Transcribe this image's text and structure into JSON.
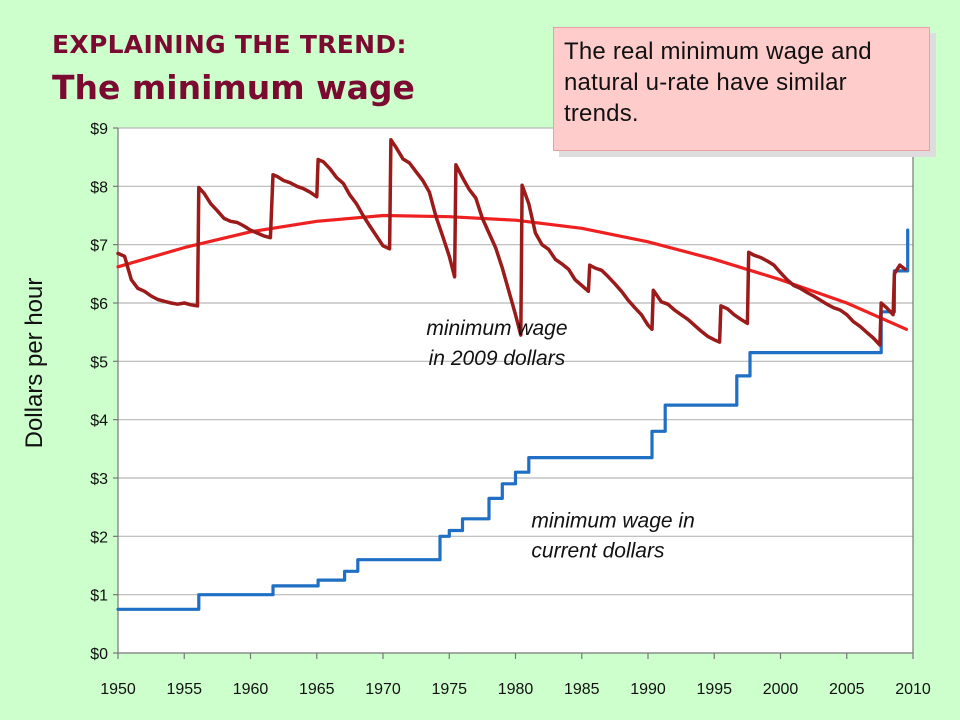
{
  "slide": {
    "title_line1": "EXPLAINING THE TREND:",
    "title_line2": "The minimum wage",
    "callout": "The real minimum wage and natural u-rate have similar trends."
  },
  "chart_data": {
    "type": "line",
    "ylabel": "Dollars per hour",
    "xlim": [
      1950,
      2010
    ],
    "ylim": [
      0,
      9
    ],
    "x_ticks": [
      1950,
      1955,
      1960,
      1965,
      1970,
      1975,
      1980,
      1985,
      1990,
      1995,
      2000,
      2005,
      2010
    ],
    "y_ticks": [
      {
        "value": 0,
        "label": "$0"
      },
      {
        "value": 1,
        "label": "$1"
      },
      {
        "value": 2,
        "label": "$2"
      },
      {
        "value": 3,
        "label": "$3"
      },
      {
        "value": 4,
        "label": "$4"
      },
      {
        "value": 5,
        "label": "$5"
      },
      {
        "value": 6,
        "label": "$6"
      },
      {
        "value": 7,
        "label": "$7"
      },
      {
        "value": 8,
        "label": "$8"
      },
      {
        "value": 9,
        "label": "$9"
      }
    ],
    "grid": "horizontal",
    "annotations": [
      {
        "lines": [
          "minimum wage",
          "in 2009 dollars"
        ],
        "x": 1978.6,
        "y": 5.45,
        "anchor": "middle"
      },
      {
        "lines": [
          "minimum wage in",
          "current dollars"
        ],
        "x": 1981.2,
        "y": 2.15,
        "anchor": "start"
      }
    ],
    "series": [
      {
        "key": "nominal",
        "color": "#1f6fc4",
        "step": true,
        "points": [
          [
            1950,
            0.75
          ],
          [
            1956.1,
            1.0
          ],
          [
            1961.7,
            1.15
          ],
          [
            1965.1,
            1.25
          ],
          [
            1967.1,
            1.4
          ],
          [
            1968.1,
            1.6
          ],
          [
            1974.3,
            2.0
          ],
          [
            1975.0,
            2.1
          ],
          [
            1976.0,
            2.3
          ],
          [
            1978.0,
            2.65
          ],
          [
            1979.0,
            2.9
          ],
          [
            1980.0,
            3.1
          ],
          [
            1981.0,
            3.35
          ],
          [
            1990.3,
            3.8
          ],
          [
            1991.3,
            4.25
          ],
          [
            1996.7,
            4.75
          ],
          [
            1997.7,
            5.15
          ],
          [
            2007.6,
            5.85
          ],
          [
            2008.6,
            6.55
          ],
          [
            2009.6,
            7.25
          ]
        ]
      },
      {
        "key": "real",
        "color": "#9b1b1b",
        "step": false,
        "points": [
          [
            1950.0,
            6.85
          ],
          [
            1950.5,
            6.8
          ],
          [
            1951.0,
            6.4
          ],
          [
            1951.5,
            6.25
          ],
          [
            1952.0,
            6.2
          ],
          [
            1952.5,
            6.12
          ],
          [
            1953.0,
            6.06
          ],
          [
            1953.5,
            6.03
          ],
          [
            1954.0,
            6.0
          ],
          [
            1954.5,
            5.98
          ],
          [
            1955.0,
            6.0
          ],
          [
            1955.5,
            5.97
          ],
          [
            1956.0,
            5.95
          ],
          [
            1956.1,
            7.98
          ],
          [
            1956.5,
            7.88
          ],
          [
            1957.0,
            7.7
          ],
          [
            1957.5,
            7.58
          ],
          [
            1958.0,
            7.45
          ],
          [
            1958.5,
            7.4
          ],
          [
            1959.0,
            7.38
          ],
          [
            1959.5,
            7.32
          ],
          [
            1960.0,
            7.25
          ],
          [
            1960.5,
            7.2
          ],
          [
            1961.0,
            7.15
          ],
          [
            1961.5,
            7.12
          ],
          [
            1961.7,
            8.2
          ],
          [
            1962.0,
            8.17
          ],
          [
            1962.5,
            8.1
          ],
          [
            1963.0,
            8.06
          ],
          [
            1963.5,
            8.0
          ],
          [
            1964.0,
            7.96
          ],
          [
            1964.5,
            7.9
          ],
          [
            1965.0,
            7.82
          ],
          [
            1965.1,
            8.46
          ],
          [
            1965.5,
            8.42
          ],
          [
            1966.0,
            8.3
          ],
          [
            1966.5,
            8.15
          ],
          [
            1967.0,
            8.05
          ],
          [
            1967.5,
            7.85
          ],
          [
            1968.0,
            7.7
          ],
          [
            1968.5,
            7.5
          ],
          [
            1969.0,
            7.32
          ],
          [
            1969.5,
            7.15
          ],
          [
            1970.0,
            6.98
          ],
          [
            1970.5,
            6.93
          ],
          [
            1970.6,
            8.8
          ],
          [
            1971.0,
            8.66
          ],
          [
            1971.5,
            8.47
          ],
          [
            1972.0,
            8.4
          ],
          [
            1972.5,
            8.25
          ],
          [
            1973.0,
            8.1
          ],
          [
            1973.5,
            7.9
          ],
          [
            1974.0,
            7.48
          ],
          [
            1974.5,
            7.15
          ],
          [
            1975.0,
            6.8
          ],
          [
            1975.4,
            6.45
          ],
          [
            1975.5,
            8.37
          ],
          [
            1976.0,
            8.15
          ],
          [
            1976.5,
            7.95
          ],
          [
            1977.0,
            7.8
          ],
          [
            1977.5,
            7.45
          ],
          [
            1978.0,
            7.2
          ],
          [
            1978.5,
            6.95
          ],
          [
            1979.0,
            6.6
          ],
          [
            1979.5,
            6.2
          ],
          [
            1980.0,
            5.8
          ],
          [
            1980.4,
            5.45
          ],
          [
            1980.5,
            8.02
          ],
          [
            1981.0,
            7.7
          ],
          [
            1981.5,
            7.2
          ],
          [
            1982.0,
            7.0
          ],
          [
            1982.5,
            6.92
          ],
          [
            1983.0,
            6.75
          ],
          [
            1983.5,
            6.67
          ],
          [
            1984.0,
            6.58
          ],
          [
            1984.5,
            6.4
          ],
          [
            1985.0,
            6.3
          ],
          [
            1985.5,
            6.2
          ],
          [
            1985.6,
            6.65
          ],
          [
            1986.0,
            6.6
          ],
          [
            1986.5,
            6.56
          ],
          [
            1987.0,
            6.45
          ],
          [
            1987.5,
            6.33
          ],
          [
            1988.0,
            6.2
          ],
          [
            1988.5,
            6.05
          ],
          [
            1989.0,
            5.92
          ],
          [
            1989.5,
            5.8
          ],
          [
            1990.0,
            5.62
          ],
          [
            1990.3,
            5.55
          ],
          [
            1990.4,
            6.22
          ],
          [
            1991.0,
            6.02
          ],
          [
            1991.5,
            5.98
          ],
          [
            1992.0,
            5.88
          ],
          [
            1992.5,
            5.8
          ],
          [
            1993.0,
            5.72
          ],
          [
            1993.5,
            5.62
          ],
          [
            1994.0,
            5.52
          ],
          [
            1994.5,
            5.43
          ],
          [
            1995.0,
            5.37
          ],
          [
            1995.4,
            5.33
          ],
          [
            1995.5,
            5.95
          ],
          [
            1996.0,
            5.9
          ],
          [
            1996.5,
            5.8
          ],
          [
            1997.0,
            5.72
          ],
          [
            1997.5,
            5.65
          ],
          [
            1997.6,
            6.87
          ],
          [
            1998.0,
            6.82
          ],
          [
            1998.5,
            6.78
          ],
          [
            1999.0,
            6.72
          ],
          [
            1999.5,
            6.65
          ],
          [
            2000.0,
            6.52
          ],
          [
            2000.5,
            6.4
          ],
          [
            2001.0,
            6.3
          ],
          [
            2001.5,
            6.25
          ],
          [
            2002.0,
            6.18
          ],
          [
            2002.5,
            6.12
          ],
          [
            2003.0,
            6.05
          ],
          [
            2003.5,
            5.98
          ],
          [
            2004.0,
            5.92
          ],
          [
            2004.5,
            5.88
          ],
          [
            2005.0,
            5.8
          ],
          [
            2005.5,
            5.68
          ],
          [
            2006.0,
            5.6
          ],
          [
            2006.5,
            5.5
          ],
          [
            2007.0,
            5.4
          ],
          [
            2007.5,
            5.28
          ],
          [
            2007.6,
            6.0
          ],
          [
            2008.0,
            5.92
          ],
          [
            2008.5,
            5.8
          ],
          [
            2008.6,
            6.5
          ],
          [
            2009.0,
            6.65
          ],
          [
            2009.4,
            6.58
          ]
        ]
      },
      {
        "key": "trend",
        "color": "#ee2020",
        "step": false,
        "points": [
          [
            1950,
            6.62
          ],
          [
            1955,
            6.95
          ],
          [
            1960,
            7.22
          ],
          [
            1965,
            7.4
          ],
          [
            1970,
            7.5
          ],
          [
            1975,
            7.48
          ],
          [
            1980,
            7.42
          ],
          [
            1985,
            7.28
          ],
          [
            1990,
            7.05
          ],
          [
            1995,
            6.75
          ],
          [
            2000,
            6.4
          ],
          [
            2005,
            6.0
          ],
          [
            2009.5,
            5.55
          ]
        ]
      }
    ]
  }
}
